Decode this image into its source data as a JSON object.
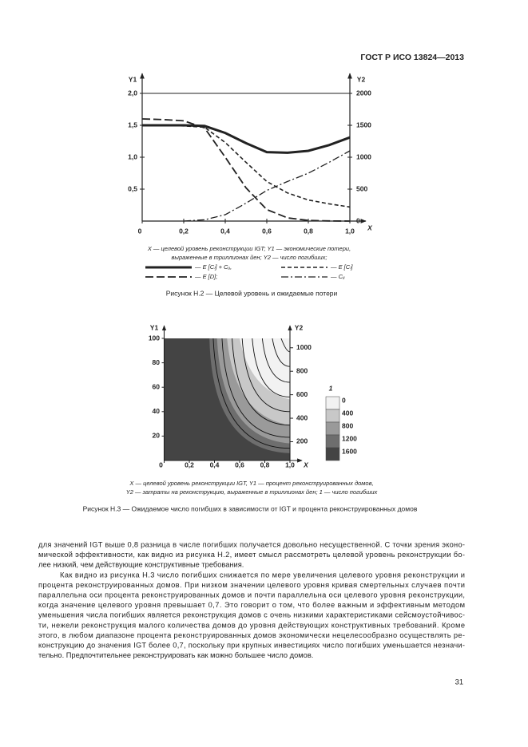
{
  "header": "ГОСТ Р ИСО 13824—2013",
  "chart_data": [
    {
      "type": "line",
      "y_label": "Y1",
      "y2_label": "Y2",
      "x_label": "X",
      "xlim": [
        0,
        1
      ],
      "xticks": [
        0,
        {
          "value": 0.2,
          "label": "0,2"
        },
        {
          "value": 0.4,
          "label": "0,4"
        },
        {
          "value": 0.6,
          "label": "0,6"
        },
        {
          "value": 0.8,
          "label": "0,8"
        },
        {
          "value": 1.0,
          "label": "1,0"
        }
      ],
      "ylim": [
        0,
        2
      ],
      "yticks": [
        {
          "value": 0.5,
          "label": "0,5"
        },
        {
          "value": 1.0,
          "label": "1,0"
        },
        {
          "value": 1.5,
          "label": "1,5"
        },
        {
          "value": 2.0,
          "label": "2,0"
        }
      ],
      "y2lim": [
        0,
        2000
      ],
      "y2ticks": [
        0,
        500,
        1000,
        1500,
        2000
      ],
      "x": [
        0,
        0.1,
        0.2,
        0.3,
        0.4,
        0.5,
        0.6,
        0.7,
        0.8,
        0.9,
        1.0
      ],
      "series": [
        {
          "name": "— E [Cₗ] + Cᵤ,",
          "color": "#222",
          "line_style": "thick",
          "values": [
            1.5,
            1.5,
            1.5,
            1.49,
            1.38,
            1.22,
            1.08,
            1.07,
            1.1,
            1.19,
            1.31
          ]
        },
        {
          "name": "— E [Cₗ]",
          "color": "#222",
          "line_style": "dashed",
          "values": [
            1.5,
            1.5,
            1.49,
            1.47,
            1.23,
            0.92,
            0.62,
            0.44,
            0.33,
            0.27,
            0.22
          ]
        },
        {
          "name": "— E [D];",
          "color": "#222",
          "line_style": "longdash",
          "axis": "y2",
          "values": [
            1600,
            1590,
            1570,
            1460,
            1000,
            520,
            180,
            50,
            10,
            2,
            0
          ]
        },
        {
          "name": "— Cᵤ",
          "color": "#222",
          "line_style": "dashdot",
          "values": [
            null,
            null,
            0,
            0.02,
            0.1,
            0.28,
            0.48,
            0.62,
            0.75,
            0.92,
            1.1
          ]
        }
      ],
      "caption": [
        "X — целевой уровень реконструкции IGT; Y1 — экономические потери,",
        "выраженные в триллионах йен; Y2 — число погибших;"
      ],
      "figure_title": "Рисунок Н.2 — Целевой уровень и ожидаемые потери"
    },
    {
      "type": "contour",
      "y_label": "Y1",
      "y2_label": "Y2",
      "x_label": "X",
      "xlim": [
        0,
        1
      ],
      "xticks": [
        0,
        {
          "value": 0.2,
          "label": "0,2"
        },
        {
          "value": 0.4,
          "label": "0,4"
        },
        {
          "value": 0.6,
          "label": "0,6"
        },
        {
          "value": 0.8,
          "label": "0,8"
        },
        {
          "value": 1.0,
          "label": "1,0"
        }
      ],
      "ylim": [
        0,
        100
      ],
      "yticks": [
        20,
        40,
        60,
        80,
        100
      ],
      "y2lim": [
        40,
        1080
      ],
      "y2ticks": [
        200,
        400,
        600,
        800,
        1000
      ],
      "colorbar": {
        "label": "1",
        "levels": [
          0,
          400,
          800,
          1200,
          1600
        ],
        "colors": [
          "#f2f2f2",
          "#c8c8c8",
          "#9a9a9a",
          "#6e6e6e",
          "#444444"
        ]
      },
      "caption": [
        "X — целевой уровень реконструкции IGT, Y1 — процент реконструированных домов,",
        "Y2 — затраты на реконструкцию, выраженные в триллионах йен; 1 — число погибших"
      ],
      "figure_title": "Рисунок Н.3 — Ожидаемое число погибших в зависимости от IGT и процента реконструированных домов"
    }
  ],
  "paragraphs": [
    [
      "для значений IGT выше 0,8 разница в числе погибших получается довольно несущественной. С точки зрения эконо-",
      "мической эффективности, как видно из рисунка Н.2, имеет смысл рассмотреть целевой уровень реконструкции бо-",
      "лее низкий, чем действующие конструктивные требования."
    ],
    [
      "Как видно из рисунка Н.3 число погибших снижается по мере увеличения целевого уровня реконструкции и",
      "процента реконструированных домов. При низком значении целевого уровня кривая смертельных случаев почти",
      "параллельна оси процента реконструированных домов и почти параллельна оси целевого уровня реконструкции,",
      "когда значение целевого уровня превышает 0,7. Это говорит о том, что более важным и эффективным методом",
      "уменьшения числа погибших является реконструкция домов с очень низкими характеристиками сейсмоустойчивос-",
      "ти, нежели реконструкция малого количества домов до уровня действующих конструктивных требований. Кроме",
      "этого, в любом диапазоне процента реконструированных домов экономически нецелесообразно осуществлять ре-",
      "конструкцию до значения IGT более 0,7, поскольку при крупных инвестициях число погибших уменьшается незначи-",
      "тельно. Предпочтительнее реконструировать как можно большее число домов."
    ]
  ],
  "page_number": "31"
}
